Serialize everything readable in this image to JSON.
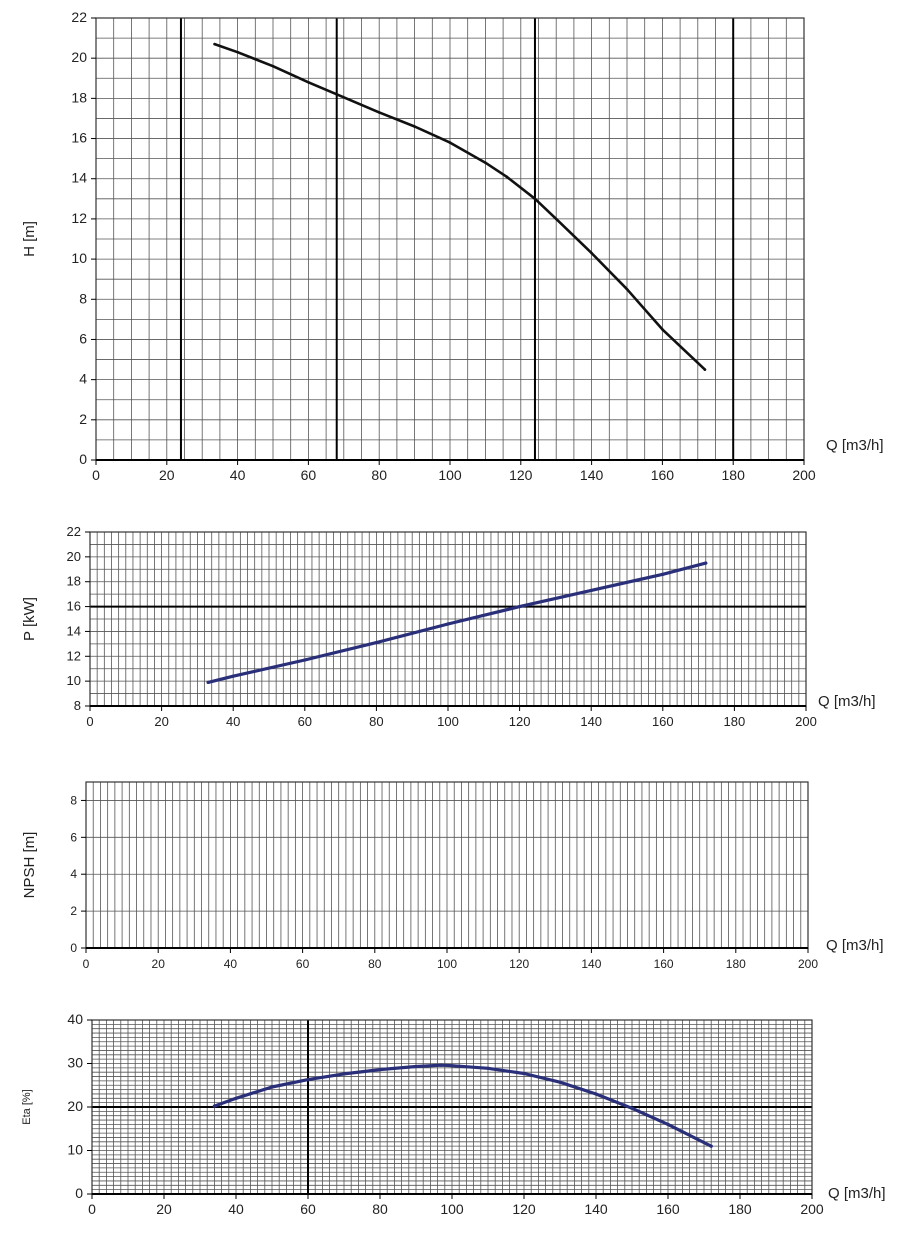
{
  "chart_data": [
    {
      "type": "line",
      "id": "head",
      "xlabel": "Q [m3/h]",
      "ylabel": "H [m]",
      "xlim": [
        0,
        200
      ],
      "ylim": [
        0,
        22
      ],
      "x_ticks": [
        0,
        20,
        40,
        60,
        80,
        100,
        120,
        140,
        160,
        180,
        200
      ],
      "y_ticks": [
        0,
        2,
        4,
        6,
        8,
        10,
        12,
        14,
        16,
        18,
        20,
        22
      ],
      "grid": true,
      "series": [
        {
          "color": "#111111",
          "points": [
            [
              33.5,
              20.7
            ],
            [
              40,
              20.3
            ],
            [
              50,
              19.6
            ],
            [
              60,
              18.8
            ],
            [
              68,
              18.2
            ],
            [
              80,
              17.3
            ],
            [
              90,
              16.6
            ],
            [
              100,
              15.8
            ],
            [
              110,
              14.8
            ],
            [
              116,
              14.1
            ],
            [
              124,
              13.0
            ],
            [
              130,
              12.0
            ],
            [
              140,
              10.3
            ],
            [
              150,
              8.5
            ],
            [
              160,
              6.5
            ],
            [
              172,
              4.5
            ]
          ]
        }
      ]
    },
    {
      "type": "line",
      "id": "power",
      "xlabel": "Q [m3/h]",
      "ylabel": "P [kW]",
      "xlim": [
        0,
        200
      ],
      "ylim": [
        8,
        22
      ],
      "x_ticks": [
        0,
        20,
        40,
        60,
        80,
        100,
        120,
        140,
        160,
        180,
        200
      ],
      "y_ticks": [
        8,
        10,
        12,
        14,
        16,
        18,
        20,
        22
      ],
      "grid": true,
      "series": [
        {
          "color": "#2a2f7a",
          "points": [
            [
              33,
              9.9
            ],
            [
              40,
              10.4
            ],
            [
              60,
              11.7
            ],
            [
              80,
              13.1
            ],
            [
              100,
              14.6
            ],
            [
              120,
              16.0
            ],
            [
              140,
              17.3
            ],
            [
              160,
              18.6
            ],
            [
              172,
              19.5
            ]
          ]
        }
      ]
    },
    {
      "type": "line",
      "id": "npsh",
      "xlabel": "Q [m3/h]",
      "ylabel": "NPSH [m]",
      "xlim": [
        0,
        200
      ],
      "ylim": [
        0,
        9
      ],
      "x_ticks": [
        0,
        20,
        40,
        60,
        80,
        100,
        120,
        140,
        160,
        180,
        200
      ],
      "y_ticks": [
        0,
        2,
        4,
        6,
        8
      ],
      "grid": true,
      "series": []
    },
    {
      "type": "line",
      "id": "efficiency",
      "xlabel": "Q [m3/h]",
      "ylabel": "Eta [%]",
      "xlim": [
        0,
        200
      ],
      "ylim": [
        0,
        40
      ],
      "x_ticks": [
        0,
        20,
        40,
        60,
        80,
        100,
        120,
        140,
        160,
        180,
        200
      ],
      "y_ticks": [
        0,
        10,
        20,
        30,
        40
      ],
      "grid": true,
      "series": [
        {
          "color": "#2a2f7a",
          "points": [
            [
              34,
              20.2
            ],
            [
              40,
              22.0
            ],
            [
              50,
              24.6
            ],
            [
              60,
              26.3
            ],
            [
              70,
              27.6
            ],
            [
              80,
              28.6
            ],
            [
              90,
              29.3
            ],
            [
              97,
              29.6
            ],
            [
              100,
              29.5
            ],
            [
              110,
              28.9
            ],
            [
              120,
              27.7
            ],
            [
              130,
              25.7
            ],
            [
              140,
              23.0
            ],
            [
              150,
              19.7
            ],
            [
              160,
              16.0
            ],
            [
              172,
              11.0
            ]
          ]
        }
      ]
    }
  ]
}
